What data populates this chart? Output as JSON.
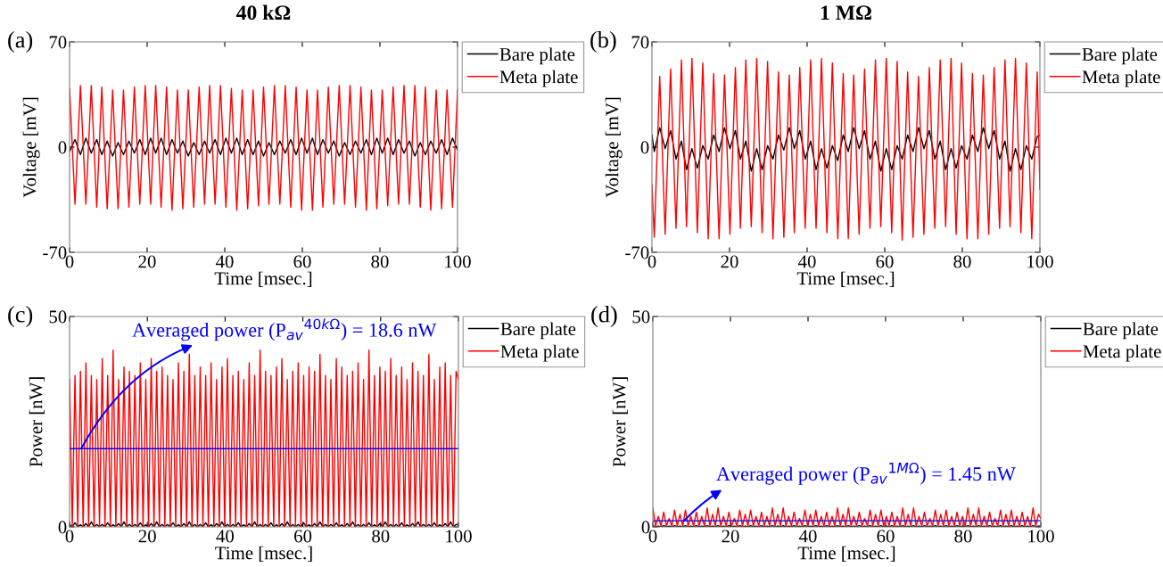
{
  "chart_data": [
    {
      "type": "line",
      "title": "40 kΩ",
      "xlabel": "Time [msec.]",
      "ylabel": "Voltage [mV]",
      "xlim": [
        0,
        100
      ],
      "xticks": [
        0,
        20,
        40,
        60,
        80,
        100
      ],
      "ylim": [
        -70,
        70
      ],
      "yticks": [
        -70,
        0,
        70
      ],
      "legend": "top right",
      "annotations": [
        "(a)"
      ],
      "x": [
        0,
        1.4,
        2.8,
        4.2,
        5.6,
        7.0,
        8.3,
        9.7,
        11.1,
        12.5,
        13.9,
        15.3,
        16.7,
        18.1,
        19.5,
        20.9,
        22.2,
        23.6,
        25.0,
        26.4,
        27.8,
        29.2,
        30.6,
        32.0,
        33.4,
        34.8,
        36.1,
        37.5,
        38.9,
        40.3,
        41.7,
        43.1,
        44.5,
        45.9,
        47.3,
        48.7,
        50.0,
        51.4,
        52.8,
        54.2,
        55.6,
        57.0,
        58.4,
        59.8,
        61.2,
        62.6,
        63.9,
        65.3,
        66.7,
        68.1,
        69.5,
        70.9,
        72.3,
        73.7,
        75.1,
        76.5,
        77.8,
        79.2,
        80.6,
        82.0,
        83.4,
        84.8,
        86.2,
        87.6,
        89.0,
        90.4,
        91.7,
        93.1,
        94.5,
        95.9,
        97.3,
        98.7,
        100
      ],
      "series": [
        {
          "name": "Bare plate",
          "color": "#000000",
          "values": [
            -3,
            5,
            -5,
            6,
            -4,
            5,
            -5,
            4,
            -6,
            3,
            -5,
            4,
            -4,
            5,
            -5,
            6,
            -4,
            6,
            -5,
            5,
            -4,
            4,
            -6,
            3,
            -5,
            4,
            -4,
            5,
            -5,
            6,
            -4,
            6,
            -5,
            5,
            -5,
            4,
            -6,
            3,
            -5,
            4,
            -4,
            5,
            -5,
            6,
            -4,
            6,
            -5,
            5,
            -4,
            4,
            -6,
            3,
            -5,
            4,
            -4,
            5,
            -5,
            6,
            -4,
            6,
            -5,
            5,
            -4,
            4,
            -6,
            3,
            -5,
            4,
            -4,
            5,
            -5,
            6,
            -2
          ]
        },
        {
          "name": "Meta plate",
          "color": "#ff0000",
          "values": [
            39,
            -38,
            41,
            -38,
            41,
            -40,
            40,
            -41,
            38,
            -41,
            38,
            -40,
            40,
            -38,
            41,
            -38,
            41,
            -40,
            40,
            -42,
            38,
            -41,
            38,
            -40,
            40,
            -38,
            41,
            -38,
            41,
            -40,
            39,
            -42,
            38,
            -41,
            38,
            -39,
            40,
            -38,
            41,
            -38,
            41,
            -40,
            40,
            -42,
            38,
            -42,
            38,
            -40,
            40,
            -38,
            41,
            -38,
            41,
            -40,
            40,
            -42,
            38,
            -41,
            38,
            -39,
            40,
            -38,
            41,
            -38,
            41,
            -40,
            40,
            -42,
            38,
            -41,
            38,
            -40,
            38
          ]
        }
      ]
    },
    {
      "type": "line",
      "title": "1 MΩ",
      "xlabel": "Time [msec.]",
      "ylabel": "Voltage [mV]",
      "xlim": [
        0,
        100
      ],
      "xticks": [
        0,
        20,
        40,
        60,
        80,
        100
      ],
      "ylim": [
        -70,
        70
      ],
      "yticks": [
        -70,
        0,
        70
      ],
      "legend": "top right",
      "annotations": [
        "(b)"
      ],
      "x": [
        0,
        0.6,
        2.0,
        3.4,
        4.8,
        6.2,
        7.6,
        8.9,
        10.3,
        11.7,
        13.1,
        14.5,
        15.9,
        17.3,
        18.7,
        20.1,
        21.5,
        22.8,
        24.2,
        25.6,
        27.0,
        28.4,
        29.8,
        31.2,
        32.6,
        34.0,
        35.4,
        36.7,
        38.1,
        39.5,
        40.9,
        42.3,
        43.7,
        45.1,
        46.5,
        47.9,
        49.3,
        50.6,
        52.0,
        53.4,
        54.8,
        56.2,
        57.6,
        59.0,
        60.4,
        61.8,
        63.2,
        64.5,
        65.9,
        67.3,
        68.7,
        70.1,
        71.5,
        72.9,
        74.3,
        75.7,
        77.1,
        78.4,
        79.8,
        81.2,
        82.6,
        84.0,
        85.4,
        86.8,
        88.2,
        89.6,
        91.0,
        92.3,
        93.7,
        95.1,
        96.5,
        97.9,
        99.3,
        100
      ],
      "series": [
        {
          "name": "Bare plate",
          "color": "#000000",
          "values": [
            8,
            -3,
            13,
            -1,
            11,
            -8,
            4,
            -15,
            -1,
            -14,
            1,
            -8,
            8,
            -3,
            13,
            -1,
            11,
            -8,
            4,
            -16,
            -1,
            -15,
            1,
            -8,
            8,
            -2,
            13,
            -1,
            11,
            -8,
            4,
            -15,
            -1,
            -14,
            1,
            -9,
            8,
            -3,
            13,
            -1,
            11,
            -8,
            4,
            -16,
            -1,
            -15,
            1,
            -8,
            8,
            -3,
            13,
            -1,
            11,
            -8,
            4,
            -15,
            -1,
            -14,
            1,
            -8,
            8,
            -3,
            13,
            -1,
            11,
            -8,
            4,
            -16,
            -1,
            -15,
            1,
            -8,
            7,
            8
          ]
        },
        {
          "name": "Meta plate",
          "color": "#ff0000",
          "values": [
            -25,
            -60,
            47,
            -58,
            52,
            -54,
            58,
            -53,
            59,
            -57,
            56,
            -61,
            49,
            -61,
            48,
            -58,
            53,
            -54,
            58,
            -53,
            59,
            -57,
            57,
            -61,
            50,
            -60,
            48,
            -57,
            53,
            -54,
            58,
            -54,
            59,
            -57,
            56,
            -61,
            49,
            -61,
            48,
            -58,
            52,
            -54,
            58,
            -53,
            59,
            -57,
            57,
            -62,
            50,
            -60,
            47,
            -58,
            53,
            -54,
            58,
            -53,
            59,
            -58,
            56,
            -61,
            49,
            -61,
            48,
            -58,
            53,
            -54,
            58,
            -53,
            59,
            -57,
            56,
            -61,
            50,
            -28
          ]
        }
      ]
    },
    {
      "type": "line",
      "xlabel": "Time [msec.]",
      "ylabel": "Power [nW]",
      "xlim": [
        0,
        100
      ],
      "xticks": [
        0,
        20,
        40,
        60,
        80,
        100
      ],
      "ylim": [
        0,
        50
      ],
      "yticks": [
        0,
        50
      ],
      "legend": "top right",
      "annotations": [
        "(c)",
        {
          "text": "Averaged power (P$_{av}$$^{40kΩ}$) = 18.6 nW",
          "x": 3,
          "y": 18.6
        }
      ],
      "ref_lines": [
        {
          "axis": "y",
          "value": 18.6,
          "color": "#0000ff"
        }
      ],
      "x": [
        0,
        0.7,
        1.4,
        2.1,
        2.8,
        3.5,
        4.2,
        4.9,
        5.6,
        6.3,
        7,
        7.7,
        8.4,
        9.1,
        9.8,
        10.5,
        11.2,
        11.9,
        12.6,
        13.3,
        14,
        14.7,
        15.4,
        16.1,
        16.8,
        17.5,
        18.2,
        18.9,
        19.6,
        20.3,
        21,
        21.7,
        22.4,
        23.1,
        23.8,
        24.5,
        25.2,
        25.9,
        26.6,
        27.3,
        28,
        28.7,
        29.4,
        30.1,
        30.8,
        31.5,
        32.2,
        32.9,
        33.6,
        34.3,
        35,
        35.7,
        36.4,
        37.1,
        37.8,
        38.5,
        39.2,
        39.9,
        40.6,
        41.3,
        42,
        42.7,
        43.4,
        44.1,
        44.8,
        45.5,
        46.2,
        46.9,
        47.6,
        48.3,
        49,
        49.7,
        50.4,
        51.1,
        51.8,
        52.5,
        53.2,
        53.9,
        54.6,
        55.3,
        56,
        56.7,
        57.4,
        58.1,
        58.8,
        59.5,
        60.2,
        60.9,
        61.6,
        62.3,
        63,
        63.7,
        64.4,
        65.1,
        65.8,
        66.5,
        67.2,
        67.9,
        68.6,
        69.3,
        70,
        70.7,
        71.4,
        72.1,
        72.8,
        73.5,
        74.2,
        74.9,
        75.6,
        76.3,
        77,
        77.7,
        78.4,
        79.1,
        79.8,
        80.5,
        81.2,
        81.9,
        82.6,
        83.3,
        84,
        84.7,
        85.4,
        86.1,
        86.8,
        87.5,
        88.2,
        88.9,
        89.6,
        90.3,
        91,
        91.7,
        92.4,
        93.1,
        93.8,
        94.5,
        95.2,
        95.9,
        96.6,
        97.3,
        98,
        98.7,
        99.4,
        100
      ],
      "series": [
        {
          "name": "Bare plate",
          "color": "#000000",
          "values": [
            0.6,
            0,
            1,
            0,
            0.5,
            0,
            0.8,
            0,
            1.2,
            0,
            0.6,
            0,
            0.6,
            0,
            1,
            0,
            0.5,
            0,
            0.8,
            0,
            1.2,
            0,
            0.6,
            0,
            0.6,
            0,
            1,
            0,
            0.5,
            0,
            0.8,
            0,
            1.2,
            0,
            0.6,
            0,
            0.6,
            0,
            1,
            0,
            0.5,
            0,
            0.8,
            0,
            1.2,
            0,
            0.6,
            0,
            0.6,
            0,
            1,
            0,
            0.5,
            0,
            0.8,
            0,
            1.2,
            0,
            0.6,
            0,
            0.6,
            0,
            1,
            0,
            0.5,
            0,
            0.8,
            0,
            1.2,
            0,
            0.6,
            0,
            0.6,
            0,
            1,
            0,
            0.5,
            0,
            0.8,
            0,
            1.2,
            0,
            0.6,
            0,
            0.6,
            0,
            1,
            0,
            0.5,
            0,
            0.8,
            0,
            1.2,
            0,
            0.6,
            0,
            0.6,
            0,
            1,
            0,
            0.5,
            0,
            0.8,
            0,
            1.2,
            0,
            0.6,
            0,
            0.6,
            0,
            1,
            0,
            0.5,
            0,
            0.8,
            0,
            1.2,
            0,
            0.6,
            0,
            0.6,
            0,
            1,
            0,
            0.5,
            0,
            0.8,
            0,
            1.2,
            0,
            0.6,
            0,
            0.6,
            0,
            1,
            0,
            0.5,
            0,
            0.8,
            0,
            1.2,
            0,
            0.6,
            0.4
          ]
        },
        {
          "name": "Meta plate",
          "color": "#ff0000",
          "values": [
            35,
            0,
            36,
            0,
            37,
            0,
            39,
            0,
            36,
            0,
            35,
            0,
            40,
            0,
            36,
            0,
            42,
            0,
            35,
            0,
            38,
            0,
            37,
            0,
            36,
            0,
            39,
            0,
            35,
            0,
            40,
            0,
            37,
            0,
            38,
            0,
            36,
            0,
            35,
            0,
            39,
            0,
            37,
            0,
            41,
            0,
            36,
            0,
            38,
            0,
            36,
            0,
            39,
            0,
            35,
            0,
            38,
            0,
            40,
            0,
            36,
            0,
            37,
            0,
            35,
            0,
            39,
            0,
            36,
            0,
            42,
            0,
            37,
            0,
            36,
            0,
            38,
            0,
            40,
            0,
            35,
            0,
            37,
            0,
            39,
            0,
            36,
            0,
            38,
            0,
            37,
            0,
            41,
            0,
            36,
            0,
            35,
            0,
            40,
            0,
            38,
            0,
            36,
            0,
            37,
            0,
            39,
            0,
            35,
            0,
            42,
            0,
            36,
            0,
            38,
            0,
            37,
            0,
            40,
            0,
            36,
            0,
            38,
            0,
            35,
            0,
            39,
            0,
            37,
            0,
            36,
            0,
            41,
            0,
            35,
            0,
            38,
            0,
            39,
            0,
            36,
            0,
            37,
            35
          ]
        }
      ]
    },
    {
      "type": "line",
      "xlabel": "Time [msec.]",
      "ylabel": "Power [nW]",
      "xlim": [
        0,
        100
      ],
      "xticks": [
        0,
        20,
        40,
        60,
        80,
        100
      ],
      "ylim": [
        0,
        50
      ],
      "yticks": [
        0,
        50
      ],
      "legend": "top right",
      "annotations": [
        "(d)",
        {
          "text": "Averaged power (P$_{av}$$^{1MΩ}$) = 1.45 nW",
          "x": 8,
          "y": 1.45
        }
      ],
      "ref_lines": [
        {
          "axis": "y",
          "value": 1.45,
          "color": "#0000ff"
        }
      ],
      "x": [
        0,
        0.7,
        1.4,
        2.1,
        2.8,
        3.5,
        4.2,
        4.9,
        5.6,
        6.3,
        7,
        7.7,
        8.4,
        9.1,
        9.8,
        10.5,
        11.2,
        11.9,
        12.6,
        13.3,
        14,
        14.7,
        15.4,
        16.1,
        16.8,
        17.5,
        18.2,
        18.9,
        19.6,
        20.3,
        21,
        21.7,
        22.4,
        23.1,
        23.8,
        24.5,
        25.2,
        25.9,
        26.6,
        27.3,
        28,
        28.7,
        29.4,
        30.1,
        30.8,
        31.5,
        32.2,
        32.9,
        33.6,
        34.3,
        35,
        35.7,
        36.4,
        37.1,
        37.8,
        38.5,
        39.2,
        39.9,
        40.6,
        41.3,
        42,
        42.7,
        43.4,
        44.1,
        44.8,
        45.5,
        46.2,
        46.9,
        47.6,
        48.3,
        49,
        49.7,
        50.4,
        51.1,
        51.8,
        52.5,
        53.2,
        53.9,
        54.6,
        55.3,
        56,
        56.7,
        57.4,
        58.1,
        58.8,
        59.5,
        60.2,
        60.9,
        61.6,
        62.3,
        63,
        63.7,
        64.4,
        65.1,
        65.8,
        66.5,
        67.2,
        67.9,
        68.6,
        69.3,
        70,
        70.7,
        71.4,
        72.1,
        72.8,
        73.5,
        74.2,
        74.9,
        75.6,
        76.3,
        77,
        77.7,
        78.4,
        79.1,
        79.8,
        80.5,
        81.2,
        81.9,
        82.6,
        83.3,
        84,
        84.7,
        85.4,
        86.1,
        86.8,
        87.5,
        88.2,
        88.9,
        89.6,
        90.3,
        91,
        91.7,
        92.4,
        93.1,
        93.8,
        94.5,
        95.2,
        95.9,
        96.6,
        97.3,
        98,
        98.7,
        99.4,
        100
      ],
      "series": [
        {
          "name": "Bare plate",
          "color": "#000000",
          "values": [
            0.3,
            0,
            0.2,
            0,
            0.3,
            0,
            0.2,
            0,
            0.3,
            0,
            0.2,
            0,
            0.3,
            0,
            0.2,
            0,
            0.3,
            0,
            0.2,
            0,
            0.3,
            0,
            0.2,
            0,
            0.3,
            0,
            0.2,
            0,
            0.3,
            0,
            0.2,
            0,
            0.3,
            0,
            0.2,
            0,
            0.3,
            0,
            0.2,
            0,
            0.3,
            0,
            0.2,
            0,
            0.3,
            0,
            0.2,
            0,
            0.3,
            0,
            0.2,
            0,
            0.3,
            0,
            0.2,
            0,
            0.3,
            0,
            0.2,
            0,
            0.3,
            0,
            0.2,
            0,
            0.3,
            0,
            0.2,
            0,
            0.3,
            0,
            0.2,
            0,
            0.3,
            0,
            0.2,
            0,
            0.3,
            0,
            0.2,
            0,
            0.3,
            0,
            0.2,
            0,
            0.3,
            0,
            0.2,
            0,
            0.3,
            0,
            0.2,
            0,
            0.3,
            0,
            0.2,
            0,
            0.3,
            0,
            0.2,
            0,
            0.3,
            0,
            0.2,
            0,
            0.3,
            0,
            0.2,
            0,
            0.3,
            0,
            0.2,
            0,
            0.3,
            0,
            0.2,
            0,
            0.3,
            0,
            0.2,
            0,
            0.3,
            0,
            0.2,
            0,
            0.3,
            0,
            0.2,
            0,
            0.3,
            0,
            0.2,
            0,
            0.3,
            0,
            0.2,
            0,
            0.3,
            0,
            0.2,
            0,
            0.3,
            0,
            0.2,
            0.1
          ]
        },
        {
          "name": "Meta plate",
          "color": "#ff0000",
          "values": [
            4.5,
            0.2,
            2.5,
            0.2,
            3.5,
            0.2,
            2,
            0.2,
            4,
            0.2,
            3,
            0.2,
            4,
            0.2,
            2.5,
            0.2,
            3.5,
            0.2,
            2.5,
            0.2,
            4.5,
            0.2,
            3,
            0.2,
            4.5,
            0.2,
            2.5,
            0.2,
            3.5,
            0.2,
            2,
            0.2,
            4,
            0.2,
            3,
            0.2,
            4,
            0.2,
            2.5,
            0.2,
            3.5,
            0.2,
            2.5,
            0.2,
            4.5,
            0.2,
            3,
            0.2,
            4.5,
            0.2,
            2.5,
            0.2,
            3.5,
            0.2,
            2,
            0.2,
            4,
            0.2,
            3,
            0.2,
            4,
            0.2,
            2.5,
            0.2,
            3.5,
            0.2,
            2.5,
            0.2,
            4.5,
            0.2,
            3,
            0.2,
            4.5,
            0.2,
            2.5,
            0.2,
            3.5,
            0.2,
            2,
            0.2,
            4,
            0.2,
            3,
            0.2,
            4,
            0.2,
            2.5,
            0.2,
            3.5,
            0.2,
            2.5,
            0.2,
            4.5,
            0.2,
            3,
            0.2,
            4.5,
            0.2,
            2.5,
            0.2,
            3.5,
            0.2,
            2,
            0.2,
            4,
            0.2,
            3,
            0.2,
            4,
            0.2,
            2.5,
            0.2,
            3.5,
            0.2,
            2.5,
            0.2,
            4.5,
            0.2,
            3,
            0.2,
            4.5,
            0.2,
            2.5,
            0.2,
            3.5,
            0.2,
            2,
            0.2,
            4,
            0.2,
            3,
            0.2,
            4,
            0.2,
            2.5,
            0.2,
            3.5,
            0.2,
            2.5,
            0.2,
            4.5,
            0.2,
            3,
            2
          ]
        }
      ]
    }
  ]
}
